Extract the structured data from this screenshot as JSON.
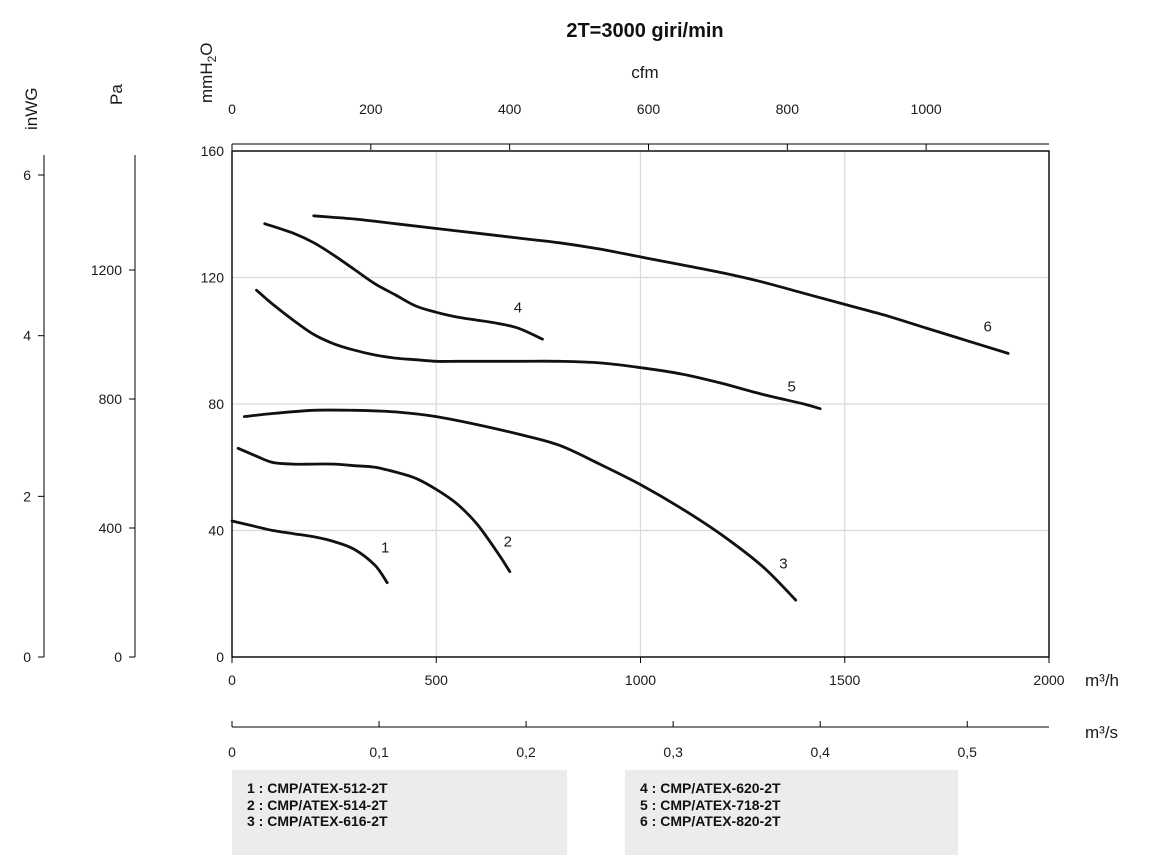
{
  "chart_data": {
    "type": "line",
    "title": "2T=3000 giri/min",
    "axes": {
      "x_bottom": {
        "label": "m³/h",
        "range": [
          0,
          2000
        ],
        "ticks": [
          "0",
          "500",
          "1000",
          "1500",
          "2000"
        ]
      },
      "x_bottom_secondary": {
        "label": "m³/s",
        "range": [
          0,
          0.5556
        ],
        "ticks": [
          "0",
          "0,1",
          "0,2",
          "0,3",
          "0,4",
          "0,5"
        ]
      },
      "x_top": {
        "label": "cfm",
        "range": [
          0,
          1177
        ],
        "ticks": [
          "0",
          "200",
          "400",
          "600",
          "800",
          "1000"
        ]
      },
      "y_left": {
        "label": "mmH₂O",
        "range": [
          0,
          160
        ],
        "ticks": [
          "0",
          "40",
          "80",
          "120",
          "160"
        ]
      },
      "y_pa": {
        "label": "Pa",
        "ticks": [
          "0",
          "400",
          "800",
          "1200"
        ]
      },
      "y_inwg": {
        "label": "inWG",
        "ticks": [
          "0",
          "2",
          "4",
          "6"
        ]
      }
    },
    "grid": true,
    "series": [
      {
        "name": "1",
        "x": [
          0,
          50,
          100,
          150,
          200,
          250,
          300,
          350,
          380
        ],
        "y": [
          43,
          41.5,
          40,
          39,
          38,
          36.5,
          34,
          29,
          23.5
        ]
      },
      {
        "name": "2",
        "x": [
          15,
          60,
          100,
          150,
          200,
          250,
          300,
          350,
          400,
          450,
          500,
          550,
          600,
          650,
          680
        ],
        "y": [
          66,
          63.5,
          61.5,
          61,
          61,
          61,
          60.5,
          60,
          58.5,
          56.5,
          53,
          48.5,
          42,
          33,
          27
        ]
      },
      {
        "name": "3",
        "x": [
          30,
          100,
          200,
          300,
          400,
          500,
          600,
          700,
          800,
          900,
          1000,
          1100,
          1200,
          1300,
          1380
        ],
        "y": [
          76,
          77,
          78,
          78,
          77.5,
          76,
          73.5,
          70.5,
          67,
          61,
          54.5,
          47,
          38.5,
          28.5,
          18
        ]
      },
      {
        "name": "4",
        "x": [
          80,
          150,
          200,
          250,
          300,
          350,
          400,
          450,
          500,
          550,
          600,
          650,
          700,
          760
        ],
        "y": [
          137,
          134,
          131,
          127,
          122.5,
          118,
          114.5,
          111,
          109,
          107.5,
          106.5,
          105.5,
          104,
          100.5
        ]
      },
      {
        "name": "5",
        "x": [
          60,
          100,
          150,
          200,
          250,
          300,
          350,
          400,
          450,
          500,
          550,
          600,
          700,
          800,
          900,
          1000,
          1100,
          1200,
          1300,
          1400,
          1440
        ],
        "y": [
          116,
          111.5,
          106.5,
          102,
          99,
          97,
          95.5,
          94.5,
          94,
          93.5,
          93.5,
          93.5,
          93.5,
          93.5,
          93,
          91.5,
          89.5,
          86.5,
          83,
          80,
          78.5
        ]
      },
      {
        "name": "6",
        "x": [
          200,
          300,
          400,
          500,
          600,
          700,
          800,
          900,
          1000,
          1100,
          1200,
          1300,
          1400,
          1500,
          1600,
          1700,
          1800,
          1900
        ],
        "y": [
          139.5,
          138.5,
          137,
          135.5,
          134,
          132.5,
          131,
          129,
          126.5,
          124,
          121.5,
          118.5,
          115,
          111.5,
          108,
          104,
          100,
          96
        ]
      }
    ],
    "series_labels": [
      {
        "text": "1",
        "x": 375,
        "y": 33
      },
      {
        "text": "2",
        "x": 675,
        "y": 35
      },
      {
        "text": "3",
        "x": 1350,
        "y": 28
      },
      {
        "text": "4",
        "x": 700,
        "y": 109
      },
      {
        "text": "5",
        "x": 1370,
        "y": 84
      },
      {
        "text": "6",
        "x": 1850,
        "y": 103
      }
    ],
    "legend": [
      "1 : CMP/ATEX-512-2T",
      "2 : CMP/ATEX-514-2T",
      "3 : CMP/ATEX-616-2T",
      "4 : CMP/ATEX-620-2T",
      "5 : CMP/ATEX-718-2T",
      "6 : CMP/ATEX-820-2T"
    ],
    "legend_placement": "bottom"
  }
}
